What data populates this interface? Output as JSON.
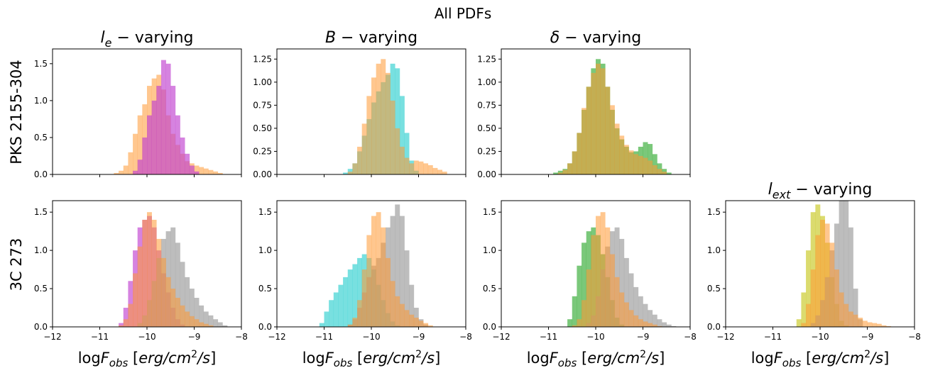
{
  "figure": {
    "suptitle": "All PDFs",
    "row_labels": [
      "PKS 2155-304",
      "3C 273"
    ],
    "xlabel": "logF_obs [erg/cm^2/s]"
  },
  "chart_data": [
    {
      "type": "histogram",
      "row": 0,
      "col": 0,
      "title": "l_e − varying",
      "xlim": [
        -12,
        -8
      ],
      "ylim": [
        0,
        1.7
      ],
      "yticks": [
        0.0,
        0.5,
        1.0,
        1.5
      ],
      "xticks": [
        -12,
        -11,
        -10,
        -9,
        -8
      ],
      "show_xticklabels": false,
      "xlabel": "",
      "series": [
        {
          "color": "#ff9933",
          "alpha": 0.55,
          "x": [
            -10.65,
            -10.55,
            -10.45,
            -10.35,
            -10.25,
            -10.15,
            -10.05,
            -9.95,
            -9.85,
            -9.75,
            -9.65,
            -9.55,
            -9.45,
            -9.35,
            -9.25,
            -9.15,
            -9.05,
            -8.95,
            -8.85,
            -8.75,
            -8.65,
            -8.55,
            -8.45
          ],
          "y": [
            0.02,
            0.05,
            0.12,
            0.3,
            0.55,
            0.8,
            0.95,
            1.2,
            1.3,
            1.35,
            1.15,
            0.8,
            0.55,
            0.4,
            0.28,
            0.18,
            0.15,
            0.12,
            0.1,
            0.08,
            0.06,
            0.04,
            0.02
          ]
        },
        {
          "color": "#c040d0",
          "alpha": 0.65,
          "x": [
            -10.25,
            -10.15,
            -10.05,
            -9.95,
            -9.85,
            -9.75,
            -9.65,
            -9.55,
            -9.45,
            -9.35,
            -9.25,
            -9.15,
            -9.05,
            -8.95
          ],
          "y": [
            0.05,
            0.2,
            0.5,
            0.8,
            1.0,
            1.2,
            1.55,
            1.5,
            1.2,
            0.8,
            0.5,
            0.28,
            0.12,
            0.04
          ]
        }
      ]
    },
    {
      "type": "histogram",
      "row": 0,
      "col": 1,
      "title": "B − varying",
      "xlim": [
        -12,
        -8
      ],
      "ylim": [
        0,
        1.36
      ],
      "yticks": [
        0.0,
        0.25,
        0.5,
        0.75,
        1.0,
        1.25
      ],
      "xticks": [
        -12,
        -11,
        -10,
        -9,
        -8
      ],
      "show_xticklabels": false,
      "xlabel": "",
      "series": [
        {
          "color": "#30d0d0",
          "alpha": 0.65,
          "x": [
            -10.55,
            -10.45,
            -10.35,
            -10.25,
            -10.15,
            -10.05,
            -9.95,
            -9.85,
            -9.75,
            -9.65,
            -9.55,
            -9.45,
            -9.35,
            -9.25,
            -9.15,
            -9.05
          ],
          "y": [
            0.02,
            0.06,
            0.12,
            0.25,
            0.42,
            0.6,
            0.78,
            0.9,
            1.0,
            1.08,
            1.2,
            1.15,
            0.85,
            0.45,
            0.15,
            0.04
          ]
        },
        {
          "color": "#ff9933",
          "alpha": 0.55,
          "x": [
            -10.45,
            -10.35,
            -10.25,
            -10.15,
            -10.05,
            -9.95,
            -9.85,
            -9.75,
            -9.65,
            -9.55,
            -9.45,
            -9.35,
            -9.25,
            -9.15,
            -9.05,
            -8.95,
            -8.85,
            -8.75,
            -8.65,
            -8.55,
            -8.45
          ],
          "y": [
            0.03,
            0.12,
            0.3,
            0.55,
            0.85,
            1.05,
            1.2,
            1.25,
            1.1,
            0.8,
            0.5,
            0.3,
            0.18,
            0.12,
            0.15,
            0.14,
            0.12,
            0.1,
            0.07,
            0.05,
            0.03
          ]
        }
      ]
    },
    {
      "type": "histogram",
      "row": 0,
      "col": 2,
      "title": "δ − varying",
      "xlim": [
        -12,
        -8
      ],
      "ylim": [
        0,
        1.36
      ],
      "yticks": [
        0.0,
        0.25,
        0.5,
        0.75,
        1.0,
        1.25
      ],
      "xticks": [
        -12,
        -11,
        -10,
        -9,
        -8
      ],
      "show_xticklabels": false,
      "xlabel": "",
      "series": [
        {
          "color": "#33aa33",
          "alpha": 0.65,
          "x": [
            -10.85,
            -10.75,
            -10.65,
            -10.55,
            -10.45,
            -10.35,
            -10.25,
            -10.15,
            -10.05,
            -9.95,
            -9.85,
            -9.75,
            -9.65,
            -9.55,
            -9.45,
            -9.35,
            -9.25,
            -9.15,
            -9.05,
            -8.95,
            -8.85,
            -8.75,
            -8.65,
            -8.55,
            -8.45
          ],
          "y": [
            0.02,
            0.04,
            0.06,
            0.12,
            0.25,
            0.45,
            0.7,
            0.95,
            1.15,
            1.25,
            1.2,
            0.95,
            0.7,
            0.5,
            0.38,
            0.3,
            0.24,
            0.25,
            0.3,
            0.35,
            0.33,
            0.22,
            0.12,
            0.06,
            0.02
          ]
        },
        {
          "color": "#ff9933",
          "alpha": 0.55,
          "x": [
            -10.75,
            -10.65,
            -10.55,
            -10.45,
            -10.35,
            -10.25,
            -10.15,
            -10.05,
            -9.95,
            -9.85,
            -9.75,
            -9.65,
            -9.55,
            -9.45,
            -9.35,
            -9.25,
            -9.15,
            -9.05,
            -8.95,
            -8.85,
            -8.75,
            -8.65,
            -8.55
          ],
          "y": [
            0.02,
            0.05,
            0.12,
            0.25,
            0.45,
            0.72,
            0.95,
            1.1,
            1.2,
            1.15,
            0.95,
            0.75,
            0.55,
            0.42,
            0.32,
            0.26,
            0.22,
            0.2,
            0.18,
            0.15,
            0.1,
            0.06,
            0.03
          ]
        }
      ]
    },
    {
      "type": "histogram",
      "row": 1,
      "col": 0,
      "title": "",
      "xlim": [
        -12,
        -8
      ],
      "ylim": [
        0,
        1.65
      ],
      "yticks": [
        0.0,
        0.5,
        1.0,
        1.5
      ],
      "xticks": [
        -12,
        -11,
        -10,
        -9,
        -8
      ],
      "show_xticklabels": true,
      "xlabel": "logF_obs [erg/cm^2/s]",
      "series": [
        {
          "color": "#c040d0",
          "alpha": 0.65,
          "x": [
            -10.55,
            -10.45,
            -10.35,
            -10.25,
            -10.15,
            -10.05,
            -9.95,
            -9.85,
            -9.75,
            -9.65,
            -9.55,
            -9.45,
            -9.35,
            -9.25
          ],
          "y": [
            0.05,
            0.25,
            0.6,
            1.0,
            1.3,
            1.4,
            1.45,
            1.3,
            1.0,
            0.7,
            0.45,
            0.25,
            0.1,
            0.03
          ]
        },
        {
          "color": "#999999",
          "alpha": 0.65,
          "x": [
            -10.15,
            -10.05,
            -9.95,
            -9.85,
            -9.75,
            -9.65,
            -9.55,
            -9.45,
            -9.35,
            -9.25,
            -9.15,
            -9.05,
            -8.95,
            -8.85,
            -8.75,
            -8.65,
            -8.55,
            -8.45,
            -8.35
          ],
          "y": [
            0.05,
            0.15,
            0.35,
            0.6,
            0.9,
            1.15,
            1.25,
            1.3,
            1.1,
            0.85,
            0.65,
            0.5,
            0.38,
            0.28,
            0.2,
            0.15,
            0.1,
            0.06,
            0.02
          ]
        },
        {
          "color": "#ff9933",
          "alpha": 0.55,
          "x": [
            -10.55,
            -10.45,
            -10.35,
            -10.25,
            -10.15,
            -10.05,
            -9.95,
            -9.85,
            -9.75,
            -9.65,
            -9.55,
            -9.45,
            -9.35,
            -9.25,
            -9.15,
            -9.05,
            -8.95,
            -8.85,
            -8.75,
            -8.65
          ],
          "y": [
            0.02,
            0.1,
            0.3,
            0.7,
            1.05,
            1.4,
            1.5,
            1.4,
            1.15,
            0.9,
            0.65,
            0.5,
            0.38,
            0.28,
            0.2,
            0.14,
            0.1,
            0.06,
            0.04,
            0.02
          ]
        }
      ]
    },
    {
      "type": "histogram",
      "row": 1,
      "col": 1,
      "title": "",
      "xlim": [
        -12,
        -8
      ],
      "ylim": [
        0,
        1.65
      ],
      "yticks": [
        0.0,
        0.5,
        1.0,
        1.5
      ],
      "xticks": [
        -12,
        -11,
        -10,
        -9,
        -8
      ],
      "show_xticklabels": true,
      "xlabel": "logF_obs [erg/cm^2/s]",
      "series": [
        {
          "color": "#30d0d0",
          "alpha": 0.65,
          "x": [
            -11.05,
            -10.95,
            -10.85,
            -10.75,
            -10.65,
            -10.55,
            -10.45,
            -10.35,
            -10.25,
            -10.15,
            -10.05,
            -9.95,
            -9.85,
            -9.75,
            -9.65,
            -9.55,
            -9.45
          ],
          "y": [
            0.05,
            0.2,
            0.35,
            0.45,
            0.55,
            0.65,
            0.75,
            0.82,
            0.9,
            0.95,
            0.9,
            0.75,
            0.55,
            0.35,
            0.18,
            0.07,
            0.02
          ]
        },
        {
          "color": "#999999",
          "alpha": 0.65,
          "x": [
            -10.45,
            -10.35,
            -10.25,
            -10.15,
            -10.05,
            -9.95,
            -9.85,
            -9.75,
            -9.65,
            -9.55,
            -9.45,
            -9.35,
            -9.25,
            -9.15,
            -9.05,
            -8.95,
            -8.85
          ],
          "y": [
            0.03,
            0.1,
            0.25,
            0.45,
            0.65,
            0.8,
            0.9,
            1.1,
            1.3,
            1.45,
            1.6,
            1.45,
            1.0,
            0.55,
            0.25,
            0.1,
            0.03
          ]
        },
        {
          "color": "#ff9933",
          "alpha": 0.55,
          "x": [
            -10.45,
            -10.35,
            -10.25,
            -10.15,
            -10.05,
            -9.95,
            -9.85,
            -9.75,
            -9.65,
            -9.55,
            -9.45,
            -9.35,
            -9.25,
            -9.15,
            -9.05,
            -8.95,
            -8.85,
            -8.75
          ],
          "y": [
            0.03,
            0.12,
            0.35,
            0.75,
            1.2,
            1.45,
            1.5,
            1.3,
            0.9,
            0.6,
            0.4,
            0.3,
            0.22,
            0.16,
            0.12,
            0.08,
            0.05,
            0.02
          ]
        }
      ]
    },
    {
      "type": "histogram",
      "row": 1,
      "col": 2,
      "title": "",
      "xlim": [
        -12,
        -8
      ],
      "ylim": [
        0,
        1.65
      ],
      "yticks": [
        0.0,
        0.5,
        1.0,
        1.5
      ],
      "xticks": [
        -12,
        -11,
        -10,
        -9,
        -8
      ],
      "show_xticklabels": true,
      "xlabel": "logF_obs [erg/cm^2/s]",
      "series": [
        {
          "color": "#33aa33",
          "alpha": 0.65,
          "x": [
            -10.55,
            -10.45,
            -10.35,
            -10.25,
            -10.15,
            -10.05,
            -9.95,
            -9.85,
            -9.75,
            -9.65,
            -9.55,
            -9.45
          ],
          "y": [
            0.1,
            0.4,
            0.8,
            1.1,
            1.25,
            1.3,
            1.2,
            0.95,
            0.65,
            0.35,
            0.12,
            0.03
          ]
        },
        {
          "color": "#999999",
          "alpha": 0.65,
          "x": [
            -10.15,
            -10.05,
            -9.95,
            -9.85,
            -9.75,
            -9.65,
            -9.55,
            -9.45,
            -9.35,
            -9.25,
            -9.15,
            -9.05,
            -8.95,
            -8.85,
            -8.75,
            -8.65,
            -8.55,
            -8.45,
            -8.35
          ],
          "y": [
            0.05,
            0.15,
            0.4,
            0.75,
            1.05,
            1.25,
            1.3,
            1.15,
            0.9,
            0.7,
            0.52,
            0.4,
            0.3,
            0.22,
            0.16,
            0.1,
            0.06,
            0.03,
            0.01
          ]
        },
        {
          "color": "#ff9933",
          "alpha": 0.55,
          "x": [
            -10.45,
            -10.35,
            -10.25,
            -10.15,
            -10.05,
            -9.95,
            -9.85,
            -9.75,
            -9.65,
            -9.55,
            -9.45,
            -9.35,
            -9.25,
            -9.15,
            -9.05,
            -8.95,
            -8.85,
            -8.75,
            -8.65
          ],
          "y": [
            0.02,
            0.1,
            0.35,
            0.75,
            1.2,
            1.45,
            1.5,
            1.3,
            0.95,
            0.65,
            0.45,
            0.32,
            0.22,
            0.15,
            0.1,
            0.07,
            0.05,
            0.03,
            0.01
          ]
        }
      ]
    },
    {
      "type": "histogram",
      "row": 1,
      "col": 3,
      "title": "l_ext − varying",
      "xlim": [
        -12,
        -8
      ],
      "ylim": [
        0,
        1.65
      ],
      "yticks": [
        0.0,
        0.5,
        1.0,
        1.5
      ],
      "xticks": [
        -12,
        -11,
        -10,
        -9,
        -8
      ],
      "show_xticklabels": true,
      "xlabel": "logF_obs [erg/cm^2/s]",
      "series": [
        {
          "color": "#c8c820",
          "alpha": 0.65,
          "x": [
            -10.45,
            -10.35,
            -10.25,
            -10.15,
            -10.05,
            -9.95,
            -9.85,
            -9.75,
            -9.65,
            -9.55,
            -9.45
          ],
          "y": [
            0.1,
            0.45,
            1.0,
            1.5,
            1.6,
            1.45,
            1.1,
            0.65,
            0.3,
            0.08,
            0.02
          ]
        },
        {
          "color": "#999999",
          "alpha": 0.65,
          "x": [
            -10.15,
            -10.05,
            -9.95,
            -9.85,
            -9.75,
            -9.65,
            -9.55,
            -9.45,
            -9.35,
            -9.25,
            -9.15
          ],
          "y": [
            0.05,
            0.15,
            0.35,
            0.65,
            1.0,
            1.35,
            1.7,
            1.7,
            1.3,
            0.5,
            0.1
          ]
        },
        {
          "color": "#ff9933",
          "alpha": 0.55,
          "x": [
            -10.35,
            -10.25,
            -10.15,
            -10.05,
            -9.95,
            -9.85,
            -9.75,
            -9.65,
            -9.55,
            -9.45,
            -9.35,
            -9.25,
            -9.15,
            -9.05,
            -8.95,
            -8.85,
            -8.75,
            -8.65,
            -8.55
          ],
          "y": [
            0.05,
            0.3,
            0.75,
            1.2,
            1.4,
            1.35,
            1.1,
            0.75,
            0.45,
            0.3,
            0.2,
            0.16,
            0.12,
            0.08,
            0.06,
            0.05,
            0.04,
            0.02,
            0.01
          ]
        }
      ]
    }
  ]
}
